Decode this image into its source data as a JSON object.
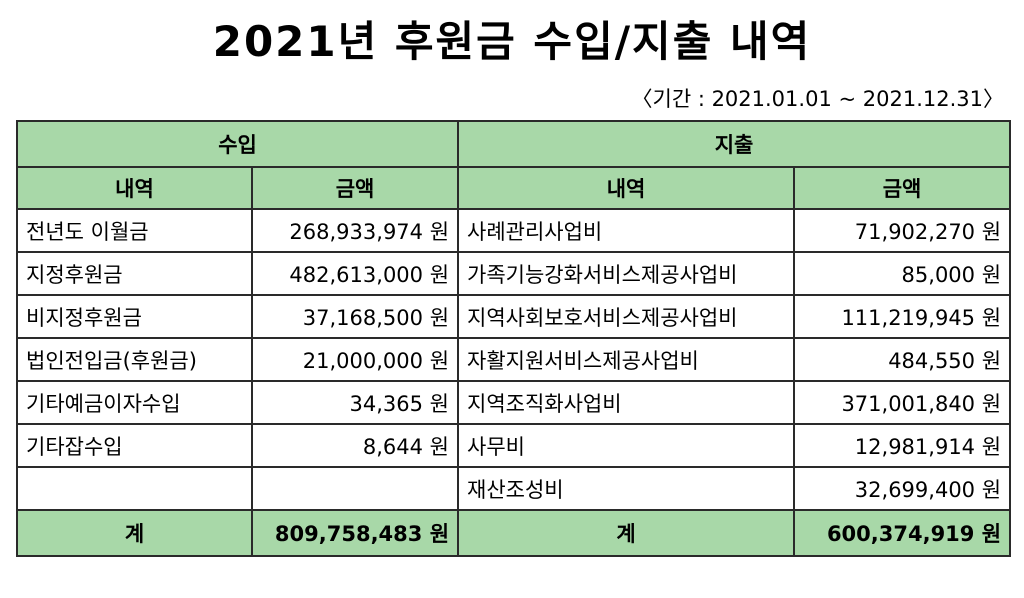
{
  "title": "2021년 후원금 수입/지출 내역",
  "period": "〈기간 : 2021.01.01 ~ 2021.12.31〉",
  "headers": {
    "income": "수입",
    "expense": "지출",
    "item": "내역",
    "amount": "금액"
  },
  "income_rows": [
    {
      "item": "전년도 이월금",
      "amount": "268,933,974 원"
    },
    {
      "item": "지정후원금",
      "amount": "482,613,000 원"
    },
    {
      "item": "비지정후원금",
      "amount": "37,168,500 원"
    },
    {
      "item": "법인전입금(후원금)",
      "amount": "21,000,000 원"
    },
    {
      "item": "기타예금이자수입",
      "amount": "34,365 원"
    },
    {
      "item": "기타잡수입",
      "amount": "8,644 원"
    },
    {
      "item": "",
      "amount": ""
    }
  ],
  "expense_rows": [
    {
      "item": "사례관리사업비",
      "amount": "71,902,270 원"
    },
    {
      "item": "가족기능강화서비스제공사업비",
      "amount": "85,000 원"
    },
    {
      "item": "지역사회보호서비스제공사업비",
      "amount": "111,219,945 원"
    },
    {
      "item": "자활지원서비스제공사업비",
      "amount": "484,550 원"
    },
    {
      "item": "지역조직화사업비",
      "amount": "371,001,840 원"
    },
    {
      "item": "사무비",
      "amount": "12,981,914 원"
    },
    {
      "item": "재산조성비",
      "amount": "32,699,400 원"
    }
  ],
  "totals": {
    "income_label": "계",
    "income_total": "809,758,483 원",
    "expense_label": "계",
    "expense_total": "600,374,919 원"
  }
}
